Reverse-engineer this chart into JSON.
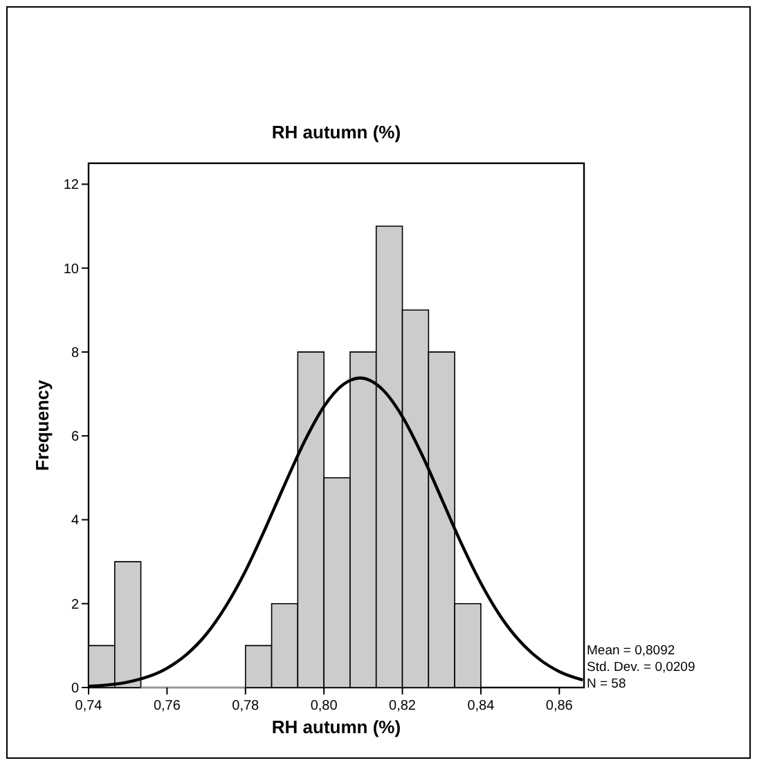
{
  "chart_data": {
    "type": "histogram",
    "title": "RH autumn (%)",
    "xlabel": "RH autumn (%)",
    "ylabel": "Frequency",
    "bins": [
      0.74,
      0.74667,
      0.75333,
      0.76,
      0.76667,
      0.77333,
      0.78,
      0.78667,
      0.79333,
      0.8,
      0.80667,
      0.81333,
      0.82,
      0.82667,
      0.83333,
      0.84
    ],
    "values": [
      1,
      3,
      0,
      0,
      0,
      0,
      1,
      2,
      8,
      5,
      8,
      11,
      9,
      8,
      2
    ],
    "color": "#cccccc",
    "series": [
      {
        "type": "line",
        "color": "#000000",
        "x": [
          0.74,
          0.75,
          0.76,
          0.765,
          0.77,
          0.775,
          0.78,
          0.785,
          0.79,
          0.795,
          0.8,
          0.805,
          0.8092,
          0.815,
          0.82,
          0.825,
          0.83,
          0.835,
          0.84,
          0.845,
          0.85,
          0.855,
          0.86,
          0.866
        ],
        "values": [
          0.03,
          0.13,
          0.46,
          0.79,
          1.27,
          1.94,
          2.78,
          3.78,
          4.84,
          5.86,
          6.7,
          7.23,
          7.38,
          7.1,
          6.46,
          5.55,
          4.5,
          3.44,
          2.49,
          1.7,
          1.1,
          0.67,
          0.38,
          0.18
        ]
      }
    ],
    "xlim": [
      0.74,
      0.8663
    ],
    "xticks": [
      {
        "value": 0.74,
        "label": "0,74"
      },
      {
        "value": 0.76,
        "label": "0,76"
      },
      {
        "value": 0.78,
        "label": "0,78"
      },
      {
        "value": 0.8,
        "label": "0,80"
      },
      {
        "value": 0.82,
        "label": "0,82"
      },
      {
        "value": 0.84,
        "label": "0,84"
      },
      {
        "value": 0.86,
        "label": "0,86"
      }
    ],
    "ylim": [
      0,
      12.5
    ],
    "yticks": [
      0,
      2,
      4,
      6,
      8,
      10,
      12
    ],
    "annotations": [
      "Mean = 0,8092",
      "Std. Dev. = 0,0209",
      "N = 58"
    ]
  }
}
